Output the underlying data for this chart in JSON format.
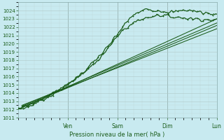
{
  "xlabel": "Pression niveau de la mer( hPa )",
  "bg_color": "#c8eaf0",
  "line_color": "#1a5c1a",
  "ylim": [
    1011,
    1025
  ],
  "yticks": [
    1011,
    1012,
    1013,
    1014,
    1015,
    1016,
    1017,
    1018,
    1019,
    1020,
    1021,
    1022,
    1023,
    1024
  ],
  "day_labels": [
    "Ven",
    "Sam",
    "Dim",
    "Lun"
  ],
  "day_positions": [
    0.25,
    0.5,
    0.75,
    1.0
  ],
  "xlim": [
    0,
    1
  ],
  "figsize": [
    3.2,
    2.0
  ],
  "dpi": 100,
  "straight_lines": [
    {
      "x0": 0.02,
      "y0": 1012.2,
      "x1": 1.0,
      "y1": 1023.0
    },
    {
      "x0": 0.02,
      "y0": 1012.3,
      "x1": 1.0,
      "y1": 1022.2
    },
    {
      "x0": 0.02,
      "y0": 1012.4,
      "x1": 1.0,
      "y1": 1022.5
    },
    {
      "x0": 0.02,
      "y0": 1012.5,
      "x1": 1.0,
      "y1": 1021.8
    }
  ],
  "wiggly_lines": [
    {
      "waypoints_x": [
        0.0,
        0.05,
        0.15,
        0.25,
        0.35,
        0.45,
        0.52,
        0.58,
        0.65,
        0.72,
        0.78,
        0.85,
        1.0
      ],
      "waypoints_y": [
        1012.0,
        1012.3,
        1013.5,
        1015.0,
        1017.0,
        1019.5,
        1021.8,
        1023.5,
        1024.2,
        1024.0,
        1023.8,
        1024.1,
        1023.5
      ],
      "noise": 0.18,
      "lw": 0.9
    },
    {
      "waypoints_x": [
        0.0,
        0.05,
        0.12,
        0.2,
        0.28,
        0.35,
        0.42,
        0.48,
        0.52,
        0.6,
        0.7,
        0.8,
        0.9,
        1.0
      ],
      "waypoints_y": [
        1012.2,
        1012.5,
        1013.2,
        1014.3,
        1015.5,
        1016.8,
        1018.5,
        1020.2,
        1021.5,
        1022.8,
        1023.5,
        1023.2,
        1023.0,
        1022.8
      ],
      "noise": 0.15,
      "lw": 0.9
    }
  ]
}
